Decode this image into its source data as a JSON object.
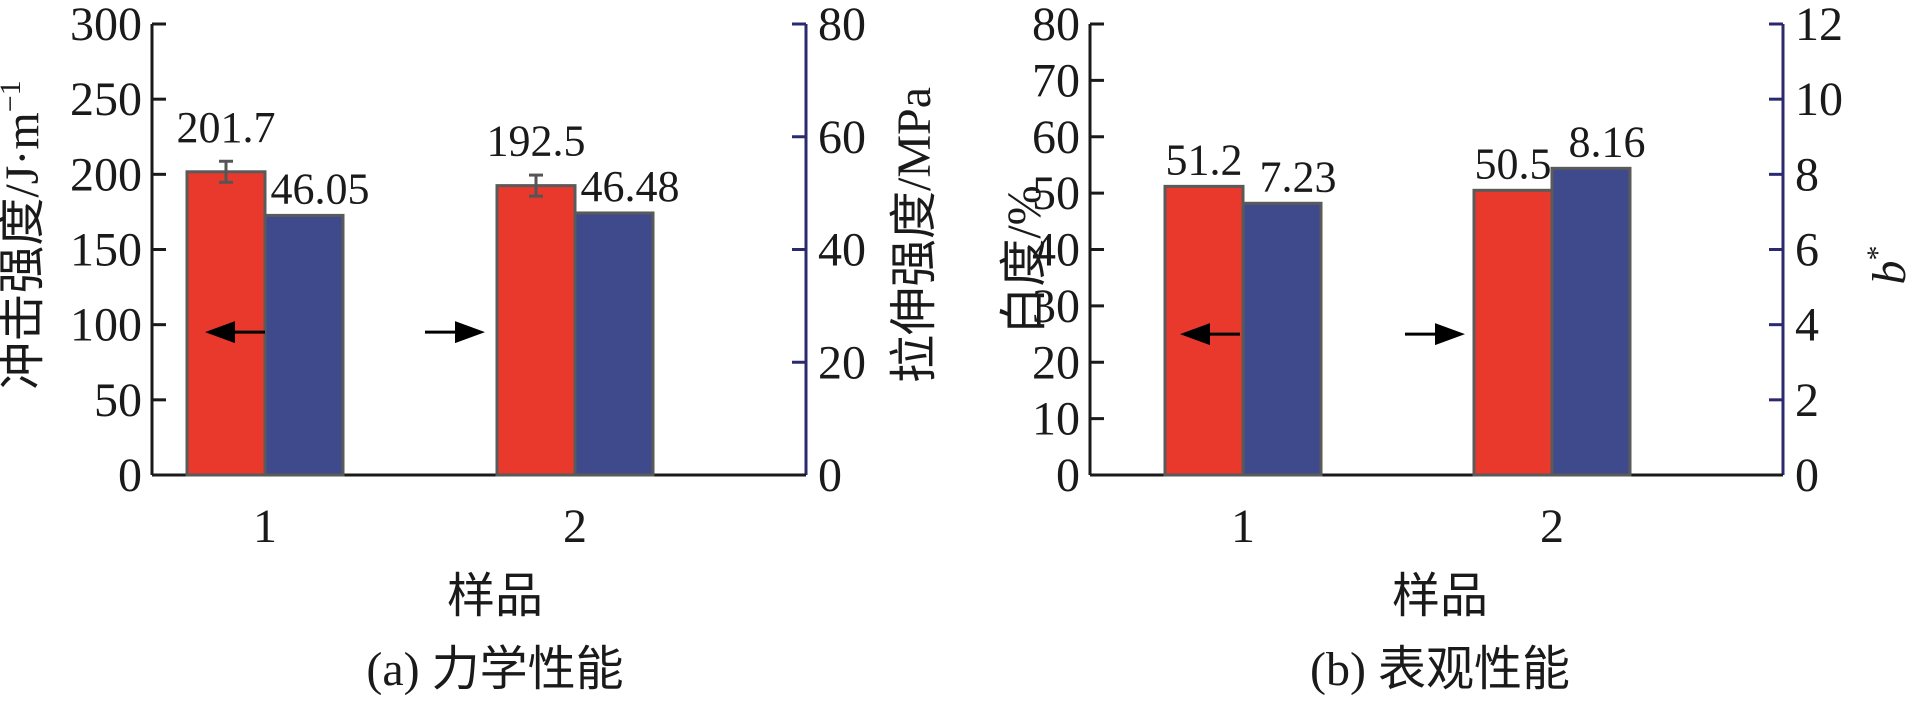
{
  "colors": {
    "series1": "#e8392c",
    "series2": "#3e4a8c",
    "right_axis": "#2b2a6e",
    "bar_stroke": "#5a5a5a",
    "axis": "#1a1a1a"
  },
  "chart_data": [
    {
      "type": "bar",
      "caption": "(a) 力学性能",
      "xlabel": "样品",
      "categories": [
        "1",
        "2"
      ],
      "ylabel": "冲击强度/J·m",
      "ylabel_sup": "−1",
      "ylim": [
        0,
        300
      ],
      "yticks": [
        "0",
        "50",
        "100",
        "150",
        "200",
        "250",
        "300"
      ],
      "y2label": "拉伸强度/MPa",
      "y2lim": [
        0,
        80
      ],
      "y2ticks": [
        "0",
        "20",
        "40",
        "60",
        "80"
      ],
      "series": [
        {
          "axis": "left",
          "values": [
            201.7,
            192.5
          ],
          "labels": [
            "201.7",
            "192.5"
          ],
          "errors": [
            7,
            7
          ]
        },
        {
          "axis": "right",
          "values": [
            46.05,
            46.48
          ],
          "labels": [
            "46.05",
            "46.48"
          ]
        }
      ],
      "arrows": {
        "left_arrow_value": 95,
        "right_arrow_value": 95
      }
    },
    {
      "type": "bar",
      "caption": "(b) 表观性能",
      "xlabel": "样品",
      "categories": [
        "1",
        "2"
      ],
      "ylabel": "白度/%",
      "ylim": [
        0,
        80
      ],
      "yticks": [
        "0",
        "10",
        "20",
        "30",
        "40",
        "50",
        "60",
        "70",
        "80"
      ],
      "y2label": "b",
      "y2label_sup": "*",
      "y2lim": [
        0,
        12
      ],
      "y2ticks": [
        "0",
        "2",
        "4",
        "6",
        "8",
        "10",
        "12"
      ],
      "series": [
        {
          "axis": "left",
          "values": [
            51.2,
            50.5
          ],
          "labels": [
            "51.2",
            "50.5"
          ]
        },
        {
          "axis": "right",
          "values": [
            7.23,
            8.16
          ],
          "labels": [
            "7.23",
            "8.16"
          ]
        }
      ],
      "arrows": {
        "left_arrow_value": 25,
        "right_arrow_value": 25
      }
    }
  ]
}
